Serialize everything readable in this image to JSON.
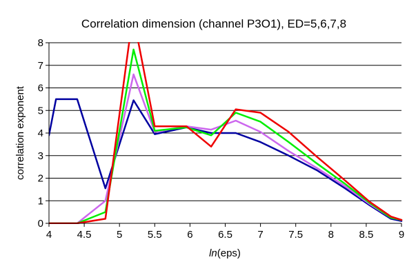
{
  "chart_data": {
    "type": "line",
    "title": "Correlation dimension (channel P3O1), ED=5,6,7,8",
    "xlabel_italic": "ln",
    "xlabel_rest": "(eps)",
    "ylabel": "correlation exponent",
    "xlim": [
      4,
      9
    ],
    "ylim": [
      0,
      8
    ],
    "xticks": [
      "4",
      "4.5",
      "5",
      "5.5",
      "6",
      "6.5",
      "7",
      "7.5",
      "8",
      "8.5",
      "9"
    ],
    "yticks": [
      "0",
      "1",
      "2",
      "3",
      "4",
      "5",
      "6",
      "7",
      "8"
    ],
    "grid": "horizontal",
    "legend": "none",
    "series": [
      {
        "color": "#0000a0",
        "points": [
          [
            4.0,
            3.9
          ],
          [
            4.1,
            5.5
          ],
          [
            4.4,
            5.5
          ],
          [
            4.8,
            1.55
          ],
          [
            5.2,
            5.45
          ],
          [
            5.5,
            3.95
          ],
          [
            5.95,
            4.25
          ],
          [
            6.3,
            4.0
          ],
          [
            6.65,
            4.0
          ],
          [
            7.0,
            3.6
          ],
          [
            7.4,
            3.0
          ],
          [
            7.8,
            2.35
          ],
          [
            8.2,
            1.55
          ],
          [
            8.55,
            0.8
          ],
          [
            8.85,
            0.2
          ],
          [
            9.0,
            0.1
          ]
        ]
      },
      {
        "color": "#cc66ee",
        "points": [
          [
            4.0,
            0.0
          ],
          [
            4.4,
            0.0
          ],
          [
            4.8,
            1.0
          ],
          [
            5.2,
            6.6
          ],
          [
            5.5,
            4.05
          ],
          [
            5.95,
            4.3
          ],
          [
            6.3,
            4.15
          ],
          [
            6.65,
            4.55
          ],
          [
            7.0,
            4.05
          ],
          [
            7.4,
            3.2
          ],
          [
            7.8,
            2.45
          ],
          [
            8.2,
            1.65
          ],
          [
            8.55,
            0.85
          ],
          [
            8.85,
            0.25
          ],
          [
            9.0,
            0.15
          ]
        ]
      },
      {
        "color": "#00ee00",
        "points": [
          [
            4.0,
            0.0
          ],
          [
            4.4,
            0.0
          ],
          [
            4.8,
            0.5
          ],
          [
            5.2,
            7.7
          ],
          [
            5.5,
            4.1
          ],
          [
            5.95,
            4.25
          ],
          [
            6.3,
            3.9
          ],
          [
            6.65,
            4.9
          ],
          [
            7.0,
            4.5
          ],
          [
            7.4,
            3.6
          ],
          [
            7.8,
            2.65
          ],
          [
            8.2,
            1.75
          ],
          [
            8.55,
            0.9
          ],
          [
            8.85,
            0.25
          ],
          [
            9.0,
            0.15
          ]
        ]
      },
      {
        "color": "#ee0000",
        "points": [
          [
            4.0,
            0.0
          ],
          [
            4.4,
            0.0
          ],
          [
            4.8,
            0.2
          ],
          [
            5.15,
            8.3
          ],
          [
            5.25,
            8.3
          ],
          [
            5.5,
            4.3
          ],
          [
            5.95,
            4.3
          ],
          [
            6.3,
            3.4
          ],
          [
            6.65,
            5.05
          ],
          [
            7.0,
            4.9
          ],
          [
            7.4,
            4.05
          ],
          [
            7.8,
            2.95
          ],
          [
            8.2,
            1.9
          ],
          [
            8.55,
            0.95
          ],
          [
            8.85,
            0.3
          ],
          [
            9.0,
            0.15
          ]
        ]
      }
    ]
  }
}
